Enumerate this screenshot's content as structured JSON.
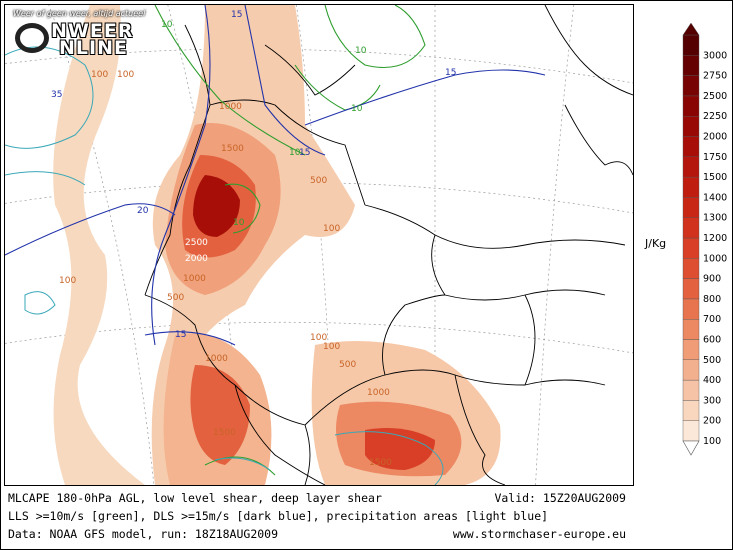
{
  "logo": {
    "tagline": "Weer of geen weer, altijd actueel",
    "word_top": "NWEER",
    "word_bottom": "NLINE"
  },
  "caption": {
    "line1_left": "MLCAPE 180-0hPa AGL, low level shear, deep layer shear",
    "line1_right": "Valid: 15Z20AUG2009",
    "line2_left": "LLS >=10m/s [green], DLS >=15m/s [dark blue], precipitation areas [light blue]",
    "line3_left": "Data: NOAA GFS model, run: 18Z18AUG2009",
    "line3_right": "www.stormchaser-europe.eu"
  },
  "legend": {
    "unit": "J/Kg",
    "levels": [
      100,
      200,
      300,
      400,
      500,
      600,
      700,
      800,
      900,
      1000,
      1200,
      1300,
      1400,
      1500,
      1750,
      2000,
      2250,
      2500,
      2750,
      3000
    ],
    "colors": [
      "#fbe8d8",
      "#f9d7bf",
      "#f6c3a6",
      "#f3b08e",
      "#f09c77",
      "#ec8862",
      "#e8744f",
      "#e3613f",
      "#de4f31",
      "#d83f26",
      "#d1321d",
      "#c92716",
      "#bf1d10",
      "#b4150c",
      "#a70e08",
      "#980905",
      "#880503",
      "#770302",
      "#660101",
      "#540000"
    ]
  },
  "contour_labels": {
    "cape": [
      "100",
      "100",
      "1000",
      "1500",
      "2500",
      "2000",
      "1000",
      "500",
      "500",
      "100",
      "100",
      "100",
      "1000",
      "1500",
      "500",
      "1000",
      "1500",
      "100"
    ],
    "lls": [
      "10",
      "10",
      "10",
      "10",
      "10"
    ],
    "dls": [
      "15",
      "15",
      "15",
      "20",
      "15",
      "30",
      "35"
    ]
  },
  "colors": {
    "lls_line": "#2e9e2e",
    "dls_line": "#2233aa",
    "precip_line": "#3aa8b8",
    "border_line": "#000000",
    "grid_line": "#9a9a9a",
    "cape_label_text": "#c86428"
  }
}
